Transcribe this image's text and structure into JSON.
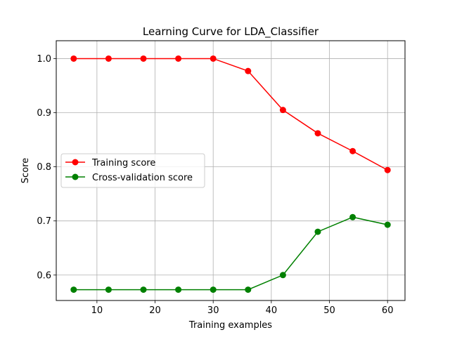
{
  "chart_data": {
    "type": "line",
    "title": "Learning Curve for LDA_Classifier",
    "xlabel": "Training examples",
    "ylabel": "Score",
    "xlim": [
      3,
      63
    ],
    "ylim": [
      0.553,
      1.033
    ],
    "xticks": [
      10,
      20,
      30,
      40,
      50,
      60
    ],
    "yticks": [
      0.6,
      0.7,
      0.8,
      0.9,
      1.0
    ],
    "xtick_labels": [
      "10",
      "20",
      "30",
      "40",
      "50",
      "60"
    ],
    "ytick_labels": [
      "0.6",
      "0.7",
      "0.8",
      "0.9",
      "1.0"
    ],
    "grid": true,
    "legend_position": "center-left",
    "x": [
      6,
      12,
      18,
      24,
      30,
      36,
      42,
      48,
      54,
      60
    ],
    "series": [
      {
        "name": "Training score",
        "color": "#ff0000",
        "marker": "circle",
        "values": [
          1.0,
          1.0,
          1.0,
          1.0,
          1.0,
          0.977,
          0.905,
          0.862,
          0.829,
          0.794
        ]
      },
      {
        "name": "Cross-validation score",
        "color": "#008000",
        "marker": "circle",
        "values": [
          0.573,
          0.573,
          0.573,
          0.573,
          0.573,
          0.573,
          0.6,
          0.68,
          0.707,
          0.693
        ]
      }
    ]
  }
}
